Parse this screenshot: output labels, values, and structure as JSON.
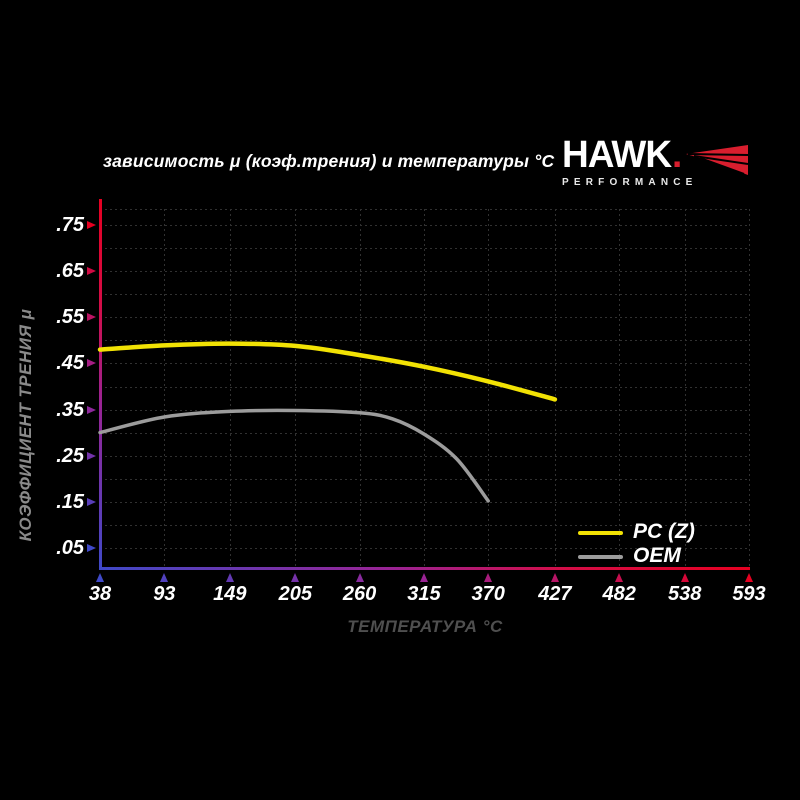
{
  "title": "зависимость μ (коэф.трения) и температуры °C",
  "logo": {
    "brand": "HAWK",
    "trademark_dot": ".",
    "sub": "PERFORMANCE",
    "wing_color": "#d81e2e"
  },
  "y_axis": {
    "title": "КОЭФФИЦИЕНТ ТРЕНИЯ μ",
    "tick_labels": [
      ".75",
      ".65",
      ".55",
      ".45",
      ".35",
      ".25",
      ".15",
      ".05"
    ]
  },
  "x_axis": {
    "title": "ТЕМПЕРАТУРА °C",
    "tick_labels": [
      "38",
      "93",
      "149",
      "205",
      "260",
      "315",
      "370",
      "427",
      "482",
      "538",
      "593"
    ]
  },
  "legend": [
    {
      "label": "PC (Z)",
      "color": "#f2e204"
    },
    {
      "label": "OEM",
      "color": "#9c9c9c"
    }
  ],
  "colors": {
    "background": "#000000",
    "grid": "#313131",
    "axis_red": "#e60021",
    "axis_magenta": "#9a2394",
    "axis_blue": "#3f49c8",
    "title_text": "#ffffff",
    "y_title_text": "#8a8a8a",
    "x_title_text": "#4f4f4f"
  },
  "chart_data": {
    "type": "line",
    "title": "зависимость μ (коэф.трения) и температуры °C",
    "xlabel": "ТЕМПЕРАТУРА °C",
    "ylabel": "КОЭФФИЦИЕНТ ТРЕНИЯ μ",
    "x_ticks": [
      38,
      93,
      149,
      205,
      260,
      315,
      370,
      427,
      482,
      538,
      593
    ],
    "y_ticks": [
      0.05,
      0.15,
      0.25,
      0.35,
      0.45,
      0.55,
      0.65,
      0.75
    ],
    "xlim": [
      38,
      593
    ],
    "ylim": [
      0.0,
      0.8
    ],
    "grid": "dotted gray, horizontal every 0.05, vertical at every temperature tick",
    "legend_position": "lower right",
    "series": [
      {
        "name": "PC (Z)",
        "color": "#f2e204",
        "x": [
          38,
          93,
          149,
          205,
          260,
          315,
          370,
          427
        ],
        "y": [
          0.48,
          0.489,
          0.493,
          0.488,
          0.468,
          0.443,
          0.411,
          0.372
        ]
      },
      {
        "name": "OEM",
        "color": "#9c9c9c",
        "x": [
          38,
          93,
          149,
          205,
          260,
          288,
          315,
          343,
          370
        ],
        "y": [
          0.3,
          0.334,
          0.346,
          0.348,
          0.343,
          0.33,
          0.297,
          0.243,
          0.152
        ]
      }
    ]
  }
}
